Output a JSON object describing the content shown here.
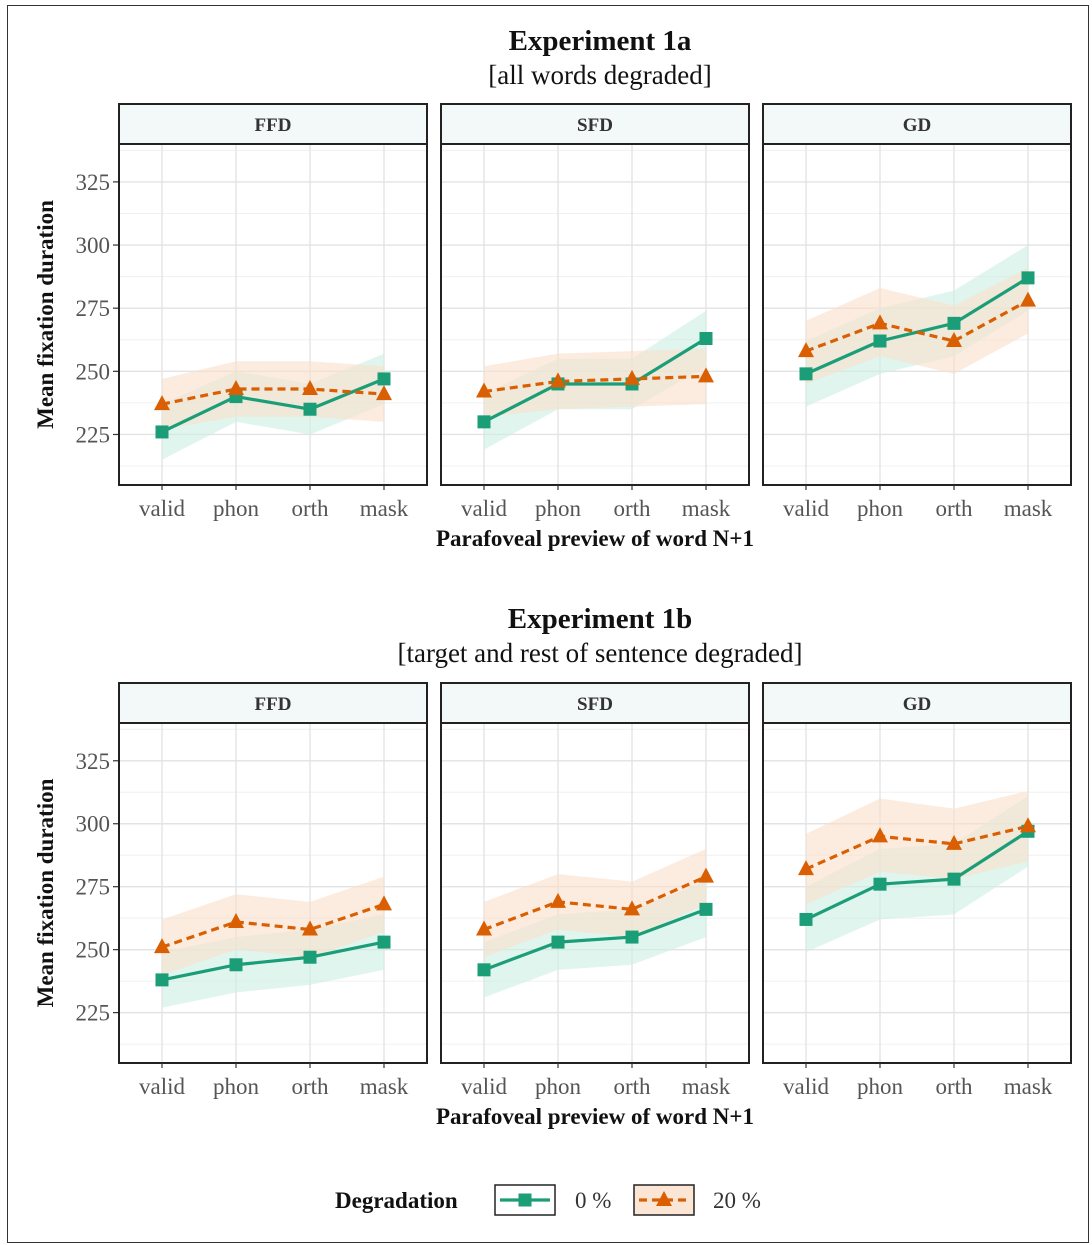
{
  "x_categories": [
    "valid",
    "phon",
    "orth",
    "mask"
  ],
  "ylabel": "Mean fixation duration",
  "xlabel": "Parafoveal preview of word N+1",
  "y_ticks": [
    225,
    250,
    275,
    300,
    325
  ],
  "ylim": [
    205,
    340
  ],
  "legend": {
    "title": "Degradation",
    "entries": [
      {
        "label": "0 %",
        "color": "#1b9e77",
        "marker": "square",
        "line": "solid"
      },
      {
        "label": "20 %",
        "color": "#d95f02",
        "marker": "triangle",
        "line": "dashed"
      }
    ],
    "placement": "bottom"
  },
  "chart_data": [
    {
      "type": "line",
      "title": "Experiment 1a",
      "subtitle": "[all words degraded]",
      "panels": [
        {
          "label": "FFD",
          "series": [
            {
              "name": "0 %",
              "values": [
                226,
                240,
                235,
                247
              ],
              "lower": [
                215,
                230,
                225,
                237
              ],
              "upper": [
                237,
                250,
                245,
                257
              ]
            },
            {
              "name": "20 %",
              "values": [
                237,
                243,
                243,
                241
              ],
              "lower": [
                227,
                232,
                232,
                230
              ],
              "upper": [
                247,
                254,
                254,
                252
              ]
            }
          ]
        },
        {
          "label": "SFD",
          "series": [
            {
              "name": "0 %",
              "values": [
                230,
                245,
                245,
                263
              ],
              "lower": [
                219,
                235,
                235,
                252
              ],
              "upper": [
                241,
                255,
                255,
                274
              ]
            },
            {
              "name": "20 %",
              "values": [
                242,
                246,
                247,
                248
              ],
              "lower": [
                232,
                235,
                236,
                237
              ],
              "upper": [
                252,
                257,
                258,
                259
              ]
            }
          ]
        },
        {
          "label": "GD",
          "series": [
            {
              "name": "0 %",
              "values": [
                249,
                262,
                269,
                287
              ],
              "lower": [
                236,
                249,
                256,
                274
              ],
              "upper": [
                262,
                275,
                282,
                300
              ]
            },
            {
              "name": "20 %",
              "values": [
                258,
                269,
                262,
                278
              ],
              "lower": [
                245,
                256,
                249,
                265
              ],
              "upper": [
                270,
                283,
                276,
                291
              ]
            }
          ]
        }
      ]
    },
    {
      "type": "line",
      "title": "Experiment 1b",
      "subtitle": "[target and rest of sentence degraded]",
      "panels": [
        {
          "label": "FFD",
          "series": [
            {
              "name": "0 %",
              "values": [
                238,
                244,
                247,
                253
              ],
              "lower": [
                227,
                233,
                236,
                242
              ],
              "upper": [
                249,
                255,
                258,
                264
              ]
            },
            {
              "name": "20 %",
              "values": [
                251,
                261,
                258,
                268
              ],
              "lower": [
                240,
                250,
                247,
                257
              ],
              "upper": [
                262,
                272,
                269,
                279
              ]
            }
          ]
        },
        {
          "label": "SFD",
          "series": [
            {
              "name": "0 %",
              "values": [
                242,
                253,
                255,
                266
              ],
              "lower": [
                231,
                242,
                244,
                255
              ],
              "upper": [
                253,
                264,
                266,
                277
              ]
            },
            {
              "name": "20 %",
              "values": [
                258,
                269,
                266,
                279
              ],
              "lower": [
                247,
                258,
                255,
                268
              ],
              "upper": [
                269,
                280,
                277,
                290
              ]
            }
          ]
        },
        {
          "label": "GD",
          "series": [
            {
              "name": "0 %",
              "values": [
                262,
                276,
                278,
                297
              ],
              "lower": [
                249,
                262,
                264,
                283
              ],
              "upper": [
                275,
                290,
                292,
                311
              ]
            },
            {
              "name": "20 %",
              "values": [
                282,
                295,
                292,
                299
              ],
              "lower": [
                268,
                281,
                278,
                285
              ],
              "upper": [
                296,
                310,
                306,
                313
              ]
            }
          ]
        }
      ]
    }
  ]
}
